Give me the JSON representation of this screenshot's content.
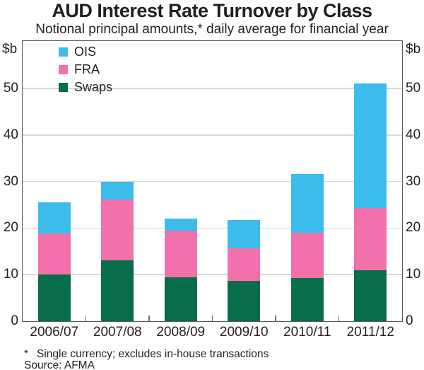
{
  "header": {
    "title": "AUD Interest Rate Turnover by Class",
    "subtitle": "Notional principal amounts,* daily average for financial year"
  },
  "chart_data": {
    "type": "bar",
    "stacked": true,
    "title": "AUD Interest Rate Turnover by Class",
    "subtitle": "Notional principal amounts,* daily average for financial year",
    "unit_label": "$b",
    "categories": [
      "2006/07",
      "2007/08",
      "2008/09",
      "2009/10",
      "2010/11",
      "2011/12"
    ],
    "series": [
      {
        "name": "Swaps",
        "color": "#076D4A",
        "values": [
          10.0,
          13.1,
          9.5,
          8.7,
          9.2,
          11.0
        ]
      },
      {
        "name": "FRA",
        "color": "#F271AD",
        "values": [
          8.8,
          13.1,
          9.9,
          7.0,
          9.8,
          13.3
        ]
      },
      {
        "name": "OIS",
        "color": "#3BBCEA",
        "values": [
          6.8,
          3.8,
          2.7,
          6.0,
          12.6,
          26.8
        ]
      }
    ],
    "stack_totals": [
      25.6,
      30.0,
      22.1,
      21.7,
      31.6,
      51.1
    ],
    "legend_order": [
      "OIS",
      "FRA",
      "Swaps"
    ],
    "legend_position": "top-left",
    "y_ticks": [
      0,
      10,
      20,
      30,
      40,
      50
    ],
    "ylim": [
      0,
      60.2
    ],
    "grid": true
  },
  "footer": {
    "footnote_marker": "*",
    "footnote_text": "Single currency; excludes in-house transactions",
    "source": "Source: AFMA"
  },
  "colors": {
    "ois": "#3BBCEA",
    "fra": "#F271AD",
    "swaps": "#076D4A",
    "frame": "#595A5C",
    "gridline": "#D9D9D9",
    "text": "#231F20"
  }
}
